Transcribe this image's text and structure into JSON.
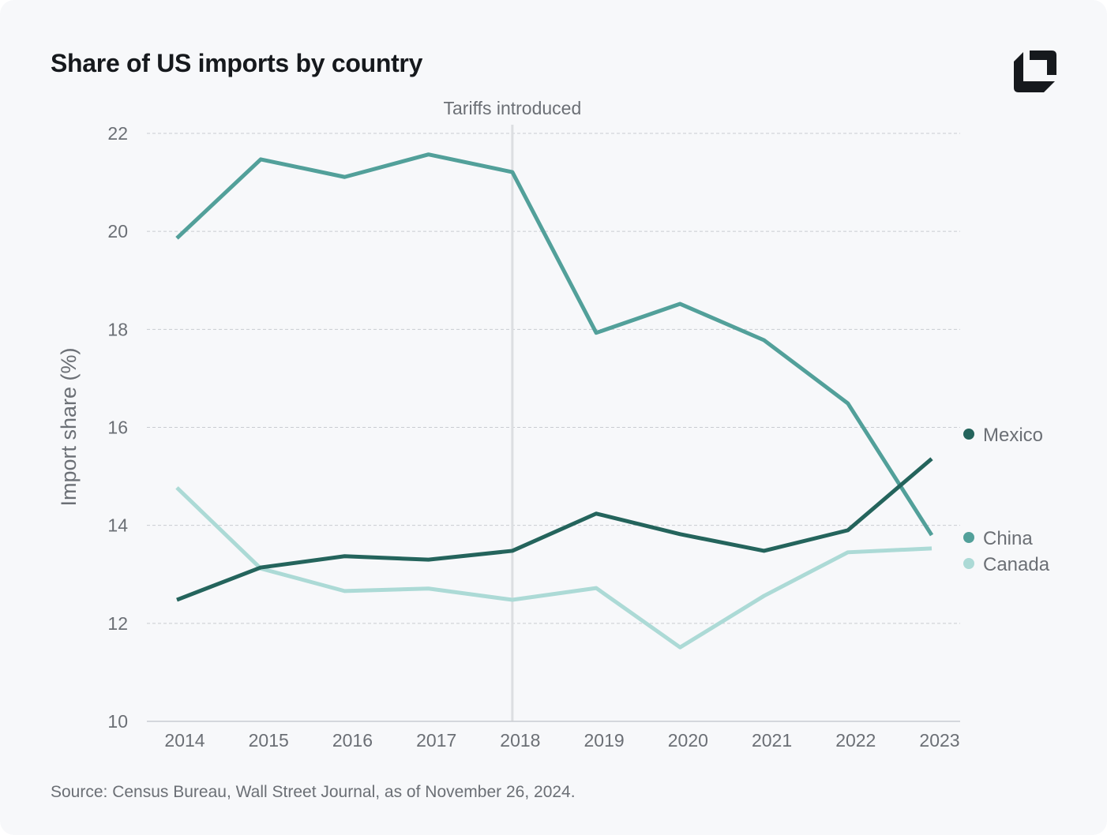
{
  "title": "Share of US imports by country",
  "source": "Source: Census Bureau, Wall Street Journal, as of November 26, 2024.",
  "logo": "brand-logo",
  "chart_data": {
    "type": "line",
    "title": "Share of US imports by country",
    "xlabel": "",
    "ylabel": "Import share (%)",
    "x": [
      2014,
      2015,
      2016,
      2017,
      2018,
      2019,
      2020,
      2021,
      2022,
      2023
    ],
    "ylim": [
      10,
      22
    ],
    "yticks": [
      10,
      12,
      14,
      16,
      18,
      20,
      22
    ],
    "grid": "horizontal dashed",
    "legend": "right, labels at line ends",
    "annotation": {
      "x": 2018,
      "label": "Tariffs introduced"
    },
    "series": [
      {
        "name": "Mexico",
        "color": "#24645c",
        "values": [
          12.48,
          13.14,
          13.37,
          13.3,
          13.48,
          14.24,
          13.82,
          13.48,
          13.9,
          15.36
        ]
      },
      {
        "name": "China",
        "color": "#52a09a",
        "values": [
          19.86,
          21.47,
          21.11,
          21.57,
          21.21,
          17.93,
          18.52,
          17.78,
          16.49,
          13.8
        ]
      },
      {
        "name": "Canada",
        "color": "#acdad6",
        "values": [
          14.77,
          13.12,
          12.66,
          12.71,
          12.48,
          12.72,
          11.51,
          12.56,
          13.45,
          13.53
        ]
      }
    ]
  }
}
